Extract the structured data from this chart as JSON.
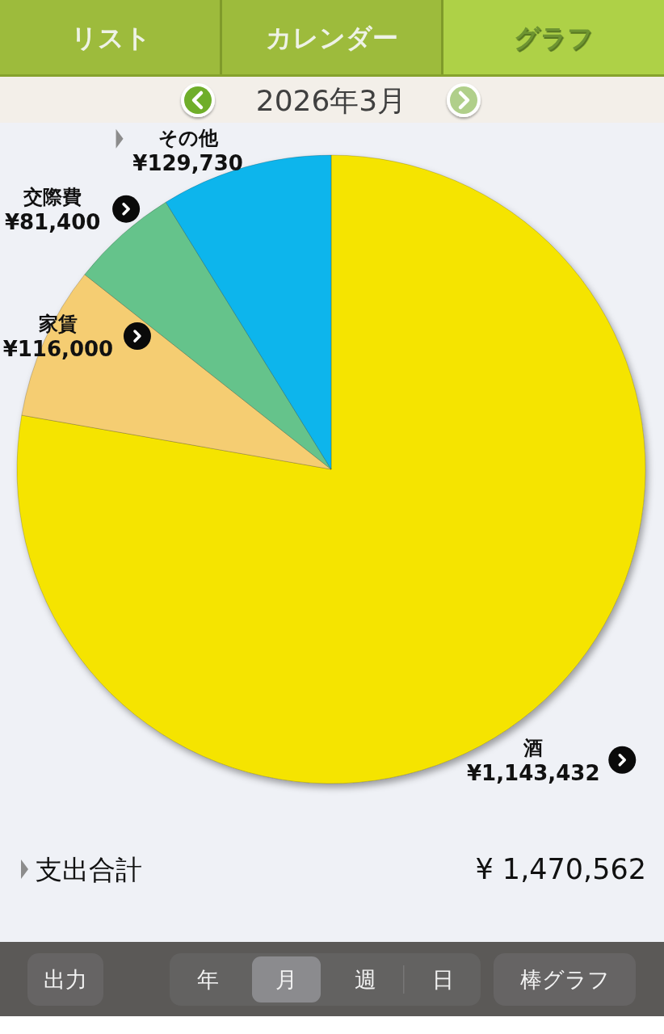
{
  "chart_data": {
    "type": "pie",
    "title": "2026年3月",
    "categories": [
      "酒",
      "家賃",
      "交際費",
      "その他"
    ],
    "values": [
      1143432,
      116000,
      81400,
      129730
    ],
    "colors": [
      "#f5e400",
      "#f5cd72",
      "#65c38b",
      "#0cb5ec"
    ],
    "value_labels": [
      "¥1,143,432",
      "¥116,000",
      "¥81,400",
      "¥129,730"
    ],
    "annotations": [
      "リスト",
      "カレンダー",
      "グラフ",
      "支出合計",
      "¥ 1,470,562",
      "出力",
      "年",
      "月",
      "週",
      "日",
      "棒グラフ"
    ]
  }
}
